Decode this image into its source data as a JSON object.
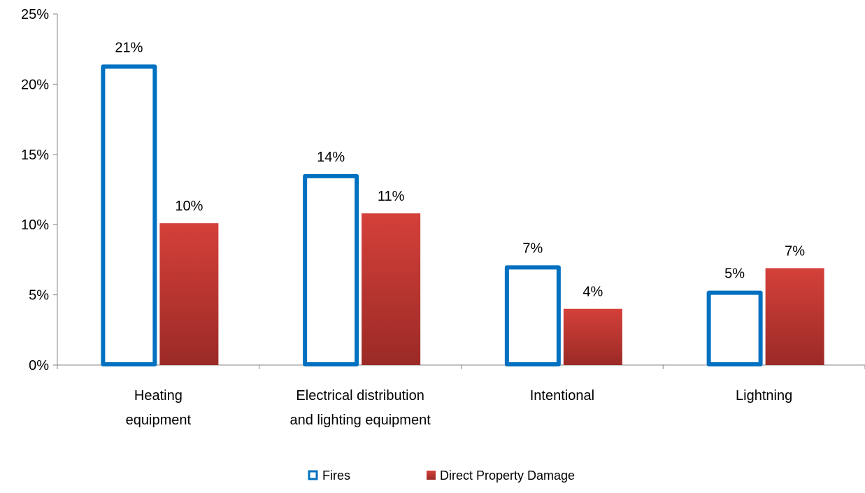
{
  "chart_data": {
    "type": "bar",
    "categories": [
      [
        "Heating",
        "equipment"
      ],
      [
        "Electrical distribution",
        "and lighting equipment"
      ],
      [
        "Intentional"
      ],
      [
        "Lightning"
      ]
    ],
    "series": [
      {
        "name": "Fires",
        "values": [
          21.4,
          13.6,
          7.1,
          5.3
        ],
        "labels": [
          "21%",
          "14%",
          "7%",
          "5%"
        ],
        "color": "#0070C0",
        "style": "outline"
      },
      {
        "name": "Direct Property Damage",
        "values": [
          10.1,
          10.8,
          4.0,
          6.9
        ],
        "labels": [
          "10%",
          "11%",
          "4%",
          "7%"
        ],
        "color": "#C0392B",
        "style": "filled-gradient"
      }
    ],
    "yticks": [
      0,
      5,
      10,
      15,
      20,
      25
    ],
    "ytick_labels": [
      "0%",
      "5%",
      "10%",
      "15%",
      "20%",
      "25%"
    ],
    "ylim": [
      0,
      25
    ],
    "grid": false,
    "legend": "bottom-center"
  }
}
